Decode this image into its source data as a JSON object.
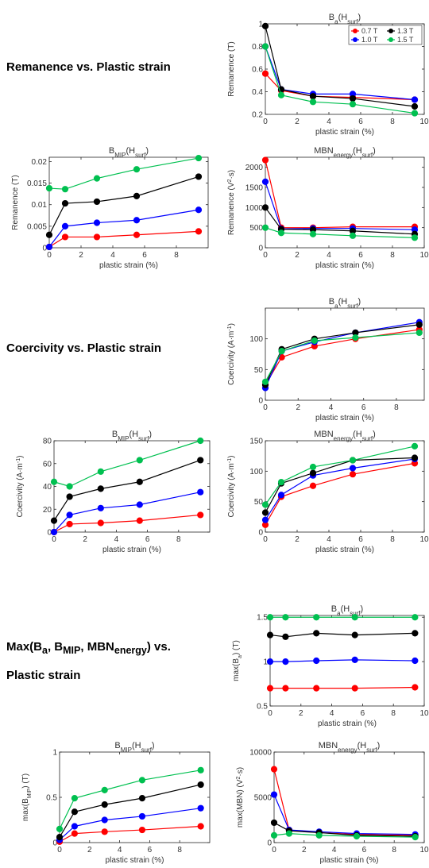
{
  "headings": {
    "remanence": "Remanence vs. Plastic strain",
    "coercivity": "Coercivity vs. Plastic strain",
    "max_line1": "Max(B<sub>a</sub>, B<sub>MIP</sub>, MBN<sub>energy</sub>) vs.",
    "max_line2": "Plastic strain"
  },
  "colors": {
    "0.7 T": "#ff0000",
    "1.0 T": "#0000ff",
    "1.3 T": "#000000",
    "1.5 T": "#00c050"
  },
  "legend_labels": [
    "0.7 T",
    "1.3 T",
    "1.0 T",
    "1.5 T"
  ],
  "chart_data": [
    {
      "id": "rem_ba",
      "type": "line",
      "title": "B<tspan baseline-shift='sub' font-size='8'>a</tspan>(H<tspan baseline-shift='sub' font-size='8'>surf</tspan>)",
      "xlabel": "plastic strain (%)",
      "ylabel": "Remanence (T)",
      "xlim": [
        0,
        10
      ],
      "ylim": [
        0.2,
        1.0
      ],
      "xticks": [
        0,
        2,
        4,
        6,
        8,
        10
      ],
      "yticks": [
        0.2,
        0.4,
        0.6,
        0.8,
        1.0
      ],
      "yticklabels": [
        "0.2",
        "0.4",
        "0.6",
        "0.8",
        "1"
      ],
      "legend": "top-right",
      "x": [
        0,
        1,
        3,
        5.5,
        9.4
      ],
      "series": [
        {
          "name": "0.7 T",
          "values": [
            0.56,
            0.41,
            0.36,
            0.35,
            0.33
          ]
        },
        {
          "name": "1.0 T",
          "values": [
            0.8,
            0.42,
            0.38,
            0.38,
            0.33
          ]
        },
        {
          "name": "1.3 T",
          "values": [
            0.98,
            0.42,
            0.36,
            0.34,
            0.27
          ]
        },
        {
          "name": "1.5 T",
          "values": [
            0.8,
            0.37,
            0.31,
            0.29,
            0.21
          ]
        }
      ]
    },
    {
      "id": "rem_bmip",
      "type": "line",
      "title": "B<tspan baseline-shift='sub' font-size='8'>MIP</tspan>(H<tspan baseline-shift='sub' font-size='8'>surf</tspan>)",
      "xlabel": "plastic strain (%)",
      "ylabel": "Remanence (T)",
      "xlim": [
        0,
        10
      ],
      "ylim": [
        0,
        0.021
      ],
      "xticks": [
        0,
        2,
        4,
        6,
        8
      ],
      "yticks": [
        0,
        0.005,
        0.01,
        0.015,
        0.02
      ],
      "yticklabels": [
        "0",
        "0.005",
        "0.01",
        "0.015",
        "0.02"
      ],
      "x": [
        0,
        1,
        3,
        5.5,
        9.4
      ],
      "series": [
        {
          "name": "0.7 T",
          "values": [
            0.0002,
            0.0025,
            0.0025,
            0.003,
            0.0038
          ]
        },
        {
          "name": "1.0 T",
          "values": [
            0.0002,
            0.005,
            0.0058,
            0.0064,
            0.0088
          ]
        },
        {
          "name": "1.3 T",
          "values": [
            0.003,
            0.0103,
            0.0107,
            0.012,
            0.0165
          ]
        },
        {
          "name": "1.5 T",
          "values": [
            0.0138,
            0.0136,
            0.0161,
            0.0182,
            0.0208
          ]
        }
      ]
    },
    {
      "id": "rem_mbn",
      "type": "line",
      "title": "MBN<tspan baseline-shift='sub' font-size='8'>energy</tspan>(H<tspan baseline-shift='sub' font-size='8'>surf</tspan>)",
      "xlabel": "plastic strain (%)",
      "ylabel": "Remanence (V<tspan baseline-shift='super' font-size='7'>2</tspan>·s)",
      "xlim": [
        0,
        10
      ],
      "ylim": [
        0,
        2250
      ],
      "xticks": [
        0,
        2,
        4,
        6,
        8,
        10
      ],
      "yticks": [
        0,
        500,
        1000,
        1500,
        2000
      ],
      "yticklabels": [
        "0",
        "500",
        "1000",
        "1500",
        "2000"
      ],
      "x": [
        0,
        1,
        3,
        5.5,
        9.4
      ],
      "series": [
        {
          "name": "0.7 T",
          "values": [
            2180,
            500,
            500,
            520,
            520
          ]
        },
        {
          "name": "1.0 T",
          "values": [
            1640,
            470,
            480,
            480,
            450
          ]
        },
        {
          "name": "1.3 T",
          "values": [
            1000,
            460,
            450,
            420,
            340
          ]
        },
        {
          "name": "1.5 T",
          "values": [
            500,
            370,
            340,
            300,
            250
          ]
        }
      ]
    },
    {
      "id": "coe_ba",
      "type": "line",
      "title": "B<tspan baseline-shift='sub' font-size='8'>a</tspan>(H<tspan baseline-shift='sub' font-size='8'>surf</tspan>)",
      "xlabel": "plastic strain (%)",
      "ylabel": "Coercivity (A·m<tspan baseline-shift='super' font-size='7'>-1</tspan>)",
      "xlim": [
        0,
        9.7
      ],
      "ylim": [
        0,
        150
      ],
      "xticks": [
        0,
        2,
        4,
        6,
        8
      ],
      "yticks": [
        0,
        50,
        100
      ],
      "yticklabels": [
        "0",
        "50",
        "100"
      ],
      "x": [
        0,
        1,
        3,
        5.5,
        9.4
      ],
      "series": [
        {
          "name": "0.7 T",
          "values": [
            25,
            70,
            88,
            100,
            115
          ]
        },
        {
          "name": "1.0 T",
          "values": [
            20,
            80,
            95,
            110,
            127
          ]
        },
        {
          "name": "1.3 T",
          "values": [
            25,
            83,
            100,
            110,
            123
          ]
        },
        {
          "name": "1.5 T",
          "values": [
            30,
            80,
            97,
            102,
            110
          ]
        }
      ]
    },
    {
      "id": "coe_bmip",
      "type": "line",
      "title": "B<tspan baseline-shift='sub' font-size='8'>MIP</tspan>(H<tspan baseline-shift='sub' font-size='8'>surf</tspan>)",
      "xlabel": "plastic strain (%)",
      "ylabel": "Coercivity (A·m<tspan baseline-shift='super' font-size='7'>-1</tspan>)",
      "xlim": [
        0,
        10
      ],
      "ylim": [
        0,
        80
      ],
      "xticks": [
        0,
        2,
        4,
        6,
        8
      ],
      "yticks": [
        0,
        20,
        40,
        60,
        80
      ],
      "yticklabels": [
        "0",
        "20",
        "40",
        "60",
        "80"
      ],
      "x": [
        0,
        1,
        3,
        5.5,
        9.4
      ],
      "series": [
        {
          "name": "0.7 T",
          "values": [
            0,
            7,
            8,
            10,
            15
          ]
        },
        {
          "name": "1.0 T",
          "values": [
            0,
            15,
            21,
            24,
            35
          ]
        },
        {
          "name": "1.3 T",
          "values": [
            10,
            31,
            38,
            44,
            63
          ]
        },
        {
          "name": "1.5 T",
          "values": [
            44,
            40,
            53,
            63,
            80
          ]
        }
      ]
    },
    {
      "id": "coe_mbn",
      "type": "line",
      "title": "MBN<tspan baseline-shift='sub' font-size='8'>energy</tspan>(H<tspan baseline-shift='sub' font-size='8'>surf</tspan>)",
      "xlabel": "plastic strain (%)",
      "ylabel": "Coercivity (A·m<tspan baseline-shift='super' font-size='7'>-1</tspan>)",
      "xlim": [
        0,
        10
      ],
      "ylim": [
        0,
        150
      ],
      "xticks": [
        0,
        2,
        4,
        6,
        8,
        10
      ],
      "yticks": [
        0,
        50,
        100,
        150
      ],
      "yticklabels": [
        "0",
        "50",
        "100",
        "150"
      ],
      "x": [
        0,
        1,
        3,
        5.5,
        9.4
      ],
      "series": [
        {
          "name": "0.7 T",
          "values": [
            12,
            58,
            76,
            95,
            113
          ]
        },
        {
          "name": "1.0 T",
          "values": [
            20,
            61,
            93,
            105,
            120
          ]
        },
        {
          "name": "1.3 T",
          "values": [
            32,
            80,
            97,
            118,
            122
          ]
        },
        {
          "name": "1.5 T",
          "values": [
            45,
            82,
            107,
            118,
            141
          ]
        }
      ]
    },
    {
      "id": "max_ba",
      "type": "line",
      "title": "B<tspan baseline-shift='sub' font-size='8'>a</tspan>(H<tspan baseline-shift='sub' font-size='8'>surf</tspan>)",
      "xlabel": "plastic strain (%)",
      "ylabel": "max(B<tspan baseline-shift='sub' font-size='7'>a</tspan>) (T)",
      "xlim": [
        0,
        10
      ],
      "ylim": [
        0.5,
        1.52
      ],
      "xticks": [
        0,
        2,
        4,
        6,
        8,
        10
      ],
      "yticks": [
        0.5,
        1.0,
        1.5
      ],
      "yticklabels": [
        "0.5",
        "1",
        "1.5"
      ],
      "x": [
        0,
        1,
        3,
        5.5,
        9.4
      ],
      "series": [
        {
          "name": "0.7 T",
          "values": [
            0.7,
            0.7,
            0.7,
            0.7,
            0.71
          ]
        },
        {
          "name": "1.0 T",
          "values": [
            1.0,
            1.0,
            1.01,
            1.02,
            1.01
          ]
        },
        {
          "name": "1.3 T",
          "values": [
            1.3,
            1.28,
            1.32,
            1.3,
            1.32
          ]
        },
        {
          "name": "1.5 T",
          "values": [
            1.5,
            1.5,
            1.5,
            1.5,
            1.5
          ]
        }
      ]
    },
    {
      "id": "max_bmip",
      "type": "line",
      "title": "B<tspan baseline-shift='sub' font-size='8'>MIP</tspan>(H<tspan baseline-shift='sub' font-size='8'>surf</tspan>)",
      "xlabel": "plastic strain (%)",
      "ylabel": "max(B<tspan baseline-shift='sub' font-size='7'>MIP</tspan>) (T)",
      "xlim": [
        0,
        10
      ],
      "ylim": [
        0,
        1.0
      ],
      "xticks": [
        0,
        2,
        4,
        6,
        8
      ],
      "yticks": [
        0,
        0.5,
        1.0
      ],
      "yticklabels": [
        "0",
        "0.5",
        "1"
      ],
      "x": [
        0,
        1,
        3,
        5.5,
        9.4
      ],
      "series": [
        {
          "name": "0.7 T",
          "values": [
            0.01,
            0.1,
            0.12,
            0.14,
            0.18
          ]
        },
        {
          "name": "1.0 T",
          "values": [
            0.03,
            0.18,
            0.25,
            0.29,
            0.38
          ]
        },
        {
          "name": "1.3 T",
          "values": [
            0.06,
            0.34,
            0.42,
            0.49,
            0.64
          ]
        },
        {
          "name": "1.5 T",
          "values": [
            0.15,
            0.49,
            0.58,
            0.69,
            0.8
          ]
        }
      ]
    },
    {
      "id": "max_mbn",
      "type": "line",
      "title": "MBN<tspan baseline-shift='sub' font-size='8'>energy</tspan>(H<tspan baseline-shift='sub' font-size='8'>surf</tspan>)",
      "xlabel": "plastic strain (%)",
      "ylabel": "max(MBN) (V<tspan baseline-shift='super' font-size='7'>2</tspan>·s)",
      "xlim": [
        0,
        10
      ],
      "ylim": [
        0,
        10000
      ],
      "xticks": [
        0,
        2,
        4,
        6,
        8,
        10
      ],
      "yticks": [
        0,
        5000,
        10000
      ],
      "yticklabels": [
        "0",
        "5000",
        "10000"
      ],
      "x": [
        0,
        1,
        3,
        5.5,
        9.4
      ],
      "series": [
        {
          "name": "0.7 T",
          "values": [
            8100,
            1400,
            1100,
            900,
            800
          ]
        },
        {
          "name": "1.0 T",
          "values": [
            5300,
            1400,
            1200,
            1000,
            900
          ]
        },
        {
          "name": "1.3 T",
          "values": [
            2200,
            1300,
            1100,
            800,
            700
          ]
        },
        {
          "name": "1.5 T",
          "values": [
            800,
            1000,
            800,
            700,
            600
          ]
        }
      ]
    }
  ]
}
